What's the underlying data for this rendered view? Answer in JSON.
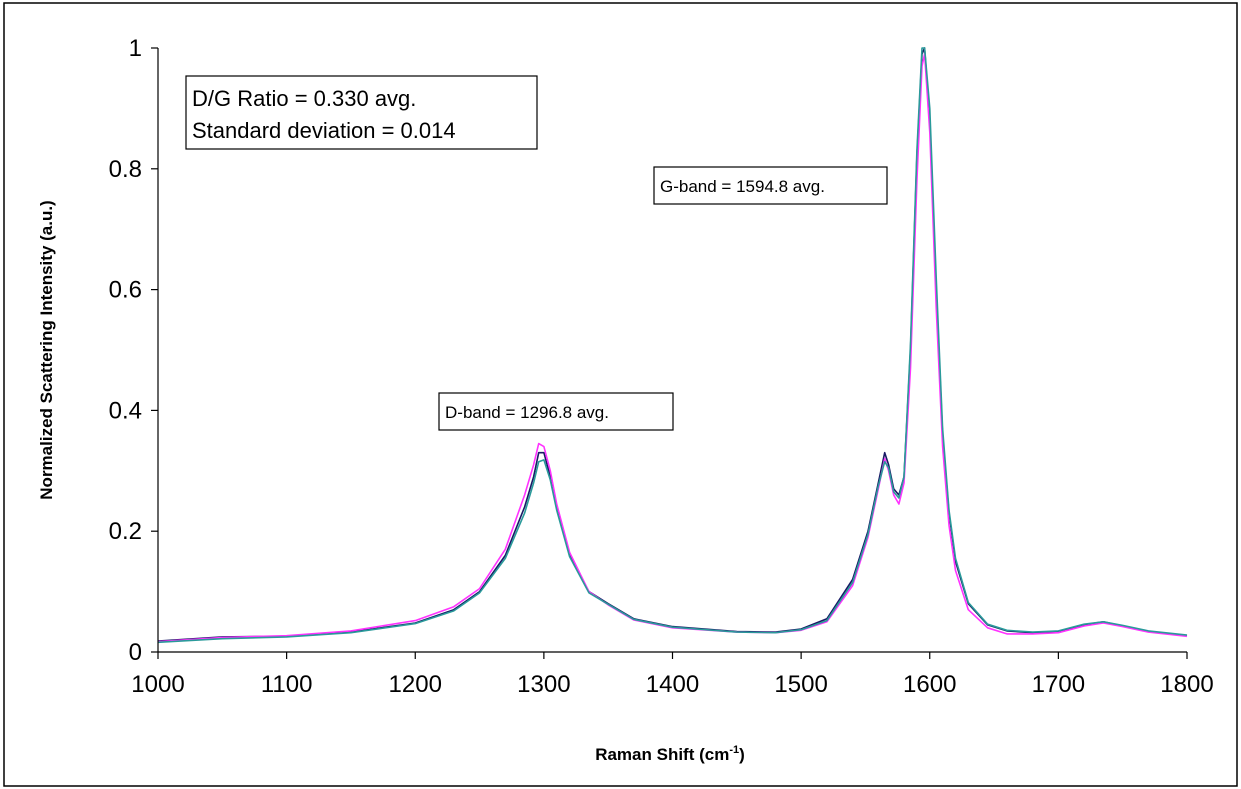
{
  "chart_data": {
    "type": "line",
    "title": "",
    "xlabel_main": "Raman Shift (cm",
    "xlabel_sup": "-1",
    "xlabel_tail": ")",
    "ylabel": "Normalized Scattering Intensity (a.u.)",
    "xlim": [
      1000,
      1800
    ],
    "ylim": [
      0,
      1
    ],
    "x_ticks": [
      "1000",
      "1100",
      "1200",
      "1300",
      "1400",
      "1500",
      "1600",
      "1700",
      "1800"
    ],
    "y_ticks": [
      "0",
      "0.2",
      "0.4",
      "0.6",
      "0.8",
      "1"
    ],
    "grid": false,
    "legend": "none",
    "annotations": {
      "ratio_line1": "D/G Ratio = 0.330 avg.",
      "ratio_line2": "Standard deviation = 0.014",
      "g_band": "G-band = 1594.8 avg.",
      "d_band": "D-band = 1296.8 avg."
    },
    "series": [
      {
        "color": "#1a1a66",
        "x": [
          1000,
          1050,
          1100,
          1150,
          1200,
          1230,
          1250,
          1270,
          1285,
          1292,
          1296,
          1300,
          1305,
          1310,
          1320,
          1335,
          1350,
          1370,
          1400,
          1450,
          1480,
          1500,
          1520,
          1540,
          1552,
          1560,
          1565,
          1568,
          1572,
          1576,
          1580,
          1585,
          1590,
          1594,
          1596,
          1600,
          1605,
          1610,
          1615,
          1620,
          1630,
          1645,
          1660,
          1680,
          1700,
          1720,
          1735,
          1750,
          1770,
          1800
        ],
        "y": [
          0.018,
          0.025,
          0.026,
          0.033,
          0.048,
          0.07,
          0.1,
          0.16,
          0.24,
          0.29,
          0.33,
          0.33,
          0.29,
          0.24,
          0.16,
          0.1,
          0.08,
          0.055,
          0.042,
          0.034,
          0.033,
          0.038,
          0.055,
          0.12,
          0.2,
          0.28,
          0.33,
          0.31,
          0.27,
          0.26,
          0.29,
          0.5,
          0.82,
          0.99,
          1.0,
          0.88,
          0.6,
          0.36,
          0.23,
          0.15,
          0.08,
          0.045,
          0.035,
          0.032,
          0.034,
          0.045,
          0.05,
          0.043,
          0.034,
          0.027
        ]
      },
      {
        "color": "#ff33ff",
        "x": [
          1000,
          1050,
          1100,
          1150,
          1200,
          1230,
          1250,
          1270,
          1285,
          1292,
          1296,
          1300,
          1305,
          1310,
          1320,
          1335,
          1350,
          1370,
          1400,
          1450,
          1480,
          1500,
          1520,
          1540,
          1552,
          1560,
          1565,
          1568,
          1572,
          1576,
          1580,
          1585,
          1590,
          1594,
          1596,
          1600,
          1605,
          1610,
          1615,
          1620,
          1630,
          1645,
          1660,
          1680,
          1700,
          1720,
          1735,
          1750,
          1770,
          1800
        ],
        "y": [
          0.017,
          0.024,
          0.027,
          0.035,
          0.052,
          0.075,
          0.105,
          0.17,
          0.26,
          0.31,
          0.345,
          0.34,
          0.3,
          0.245,
          0.165,
          0.1,
          0.078,
          0.053,
          0.04,
          0.033,
          0.032,
          0.036,
          0.05,
          0.11,
          0.19,
          0.27,
          0.32,
          0.3,
          0.26,
          0.245,
          0.28,
          0.47,
          0.78,
          0.97,
          0.99,
          0.86,
          0.57,
          0.34,
          0.21,
          0.135,
          0.07,
          0.04,
          0.03,
          0.03,
          0.032,
          0.043,
          0.048,
          0.042,
          0.033,
          0.026
        ]
      },
      {
        "color": "#2a9a9a",
        "x": [
          1000,
          1050,
          1100,
          1150,
          1200,
          1230,
          1250,
          1270,
          1285,
          1292,
          1296,
          1300,
          1305,
          1310,
          1320,
          1335,
          1350,
          1370,
          1400,
          1450,
          1480,
          1500,
          1520,
          1540,
          1552,
          1560,
          1565,
          1568,
          1572,
          1576,
          1580,
          1585,
          1590,
          1594,
          1596,
          1600,
          1605,
          1610,
          1615,
          1620,
          1630,
          1645,
          1660,
          1680,
          1700,
          1720,
          1735,
          1750,
          1770,
          1800
        ],
        "y": [
          0.016,
          0.022,
          0.025,
          0.032,
          0.047,
          0.068,
          0.098,
          0.155,
          0.23,
          0.28,
          0.315,
          0.318,
          0.285,
          0.235,
          0.158,
          0.098,
          0.079,
          0.054,
          0.041,
          0.033,
          0.032,
          0.037,
          0.052,
          0.115,
          0.195,
          0.275,
          0.315,
          0.305,
          0.265,
          0.255,
          0.29,
          0.51,
          0.83,
          1.0,
          1.0,
          0.9,
          0.62,
          0.37,
          0.235,
          0.155,
          0.082,
          0.046,
          0.036,
          0.033,
          0.035,
          0.046,
          0.05,
          0.044,
          0.035,
          0.028
        ]
      }
    ]
  }
}
